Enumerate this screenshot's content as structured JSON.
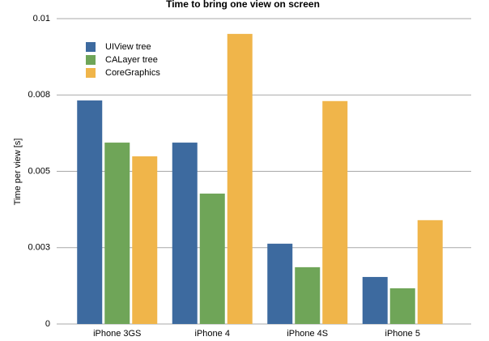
{
  "chart_data": {
    "type": "bar",
    "title": "Time to bring one view on screen",
    "y_label": "Time per view [s]",
    "categories": [
      "iPhone 3GS",
      "iPhone 4",
      "iPhone 4S",
      "iPhone 5"
    ],
    "series": [
      {
        "name": "UIView tree",
        "color": "#3d6a9f",
        "values": [
          0.00732,
          0.00594,
          0.00263,
          0.00154
        ]
      },
      {
        "name": "CALayer tree",
        "color": "#6fa558",
        "values": [
          0.00594,
          0.00427,
          0.00186,
          0.00117
        ]
      },
      {
        "name": "CoreGraphics",
        "color": "#f0b54a",
        "values": [
          0.00549,
          0.0095,
          0.0073,
          0.0034
        ]
      }
    ],
    "ylim": [
      0,
      0.01
    ],
    "yticks": [
      0,
      {
        "value": 0.0025,
        "label": "0.003"
      },
      0.005,
      {
        "value": 0.0075,
        "label": "0.008"
      },
      0.01
    ],
    "grid": true,
    "legend": "upper left"
  }
}
